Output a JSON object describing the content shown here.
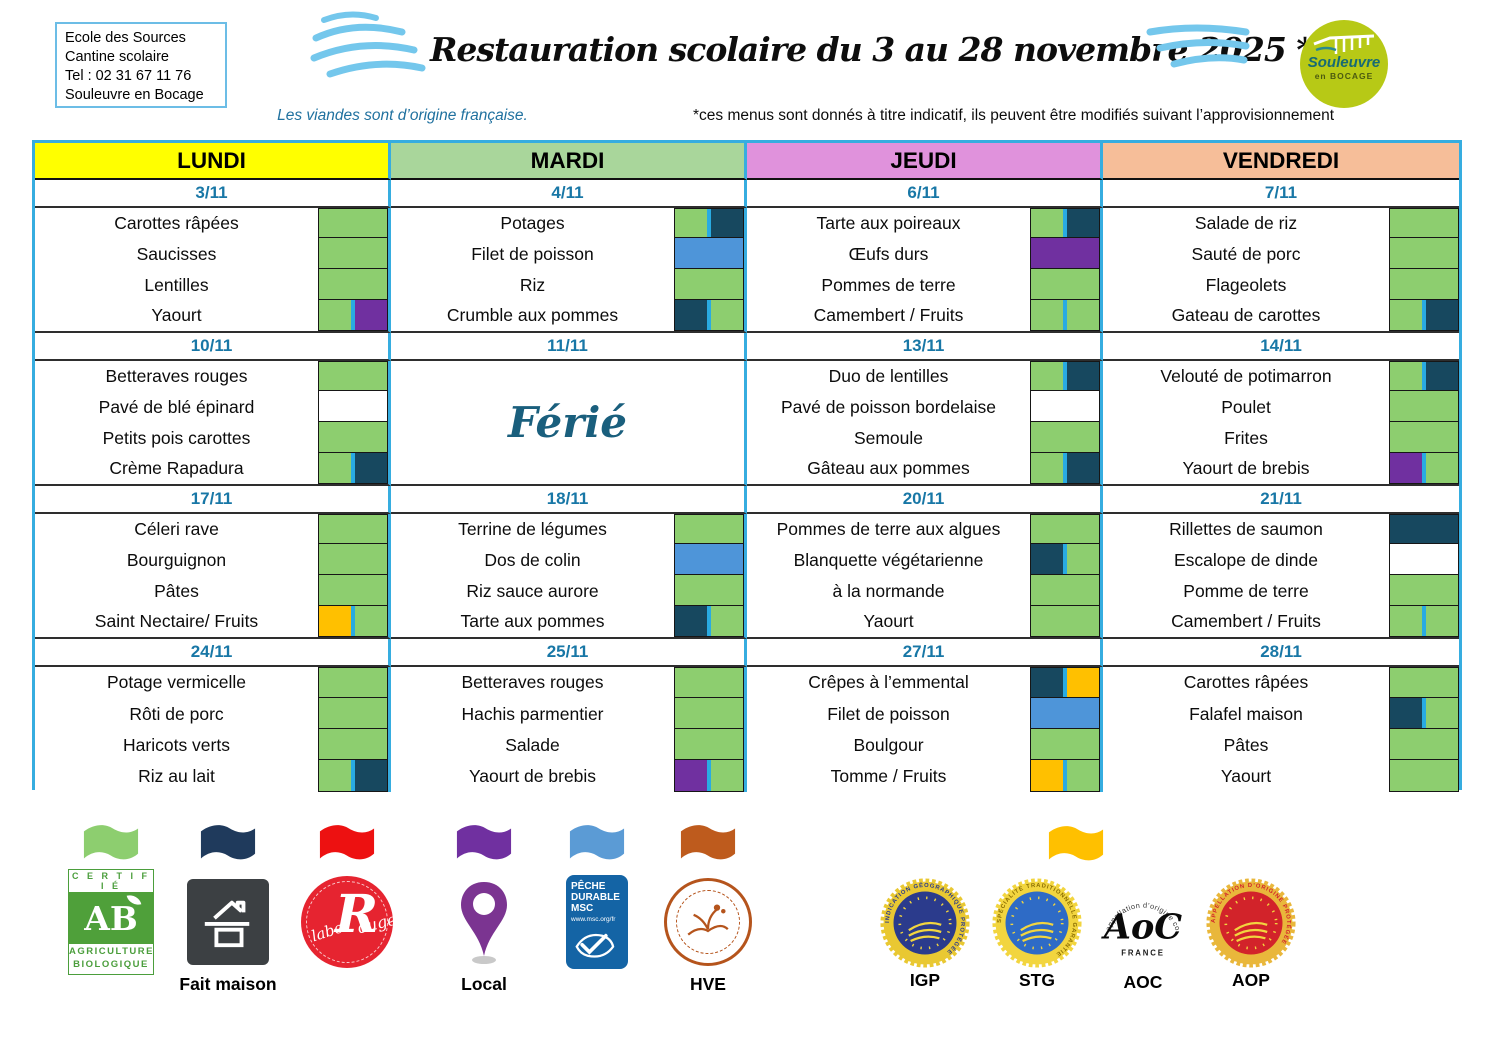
{
  "header": {
    "info_box": {
      "lines": [
        "Ecole des Sources",
        "Cantine scolaire",
        "Tel : 02 31 67 11 76",
        "Souleuvre en Bocage"
      ]
    },
    "title": "Restauration scolaire du 3 au 28 novembre 2025 *",
    "logo": {
      "line1": "Souleuvre",
      "line2": "en BOCAGE"
    }
  },
  "notes": {
    "left": "Les viandes sont d’origine française.",
    "right": "*ces menus sont donnés à titre indicatif, ils peuvent être modifiés suivant l’approvisionnement"
  },
  "days": [
    {
      "label": "LUNDI",
      "color": "#FFFF00"
    },
    {
      "label": "MARDI",
      "color": "#A9D69B"
    },
    {
      "label": "JEUDI",
      "color": "#E092DC"
    },
    {
      "label": "VENDREDI",
      "color": "#F6BE99"
    }
  ],
  "marker_colors": {
    "green": "#8DCE6F",
    "navy": "#17485F",
    "blue": "#4E95D9",
    "purple": "#7030A0",
    "orange": "#FFC000",
    "white": "#FFFFFF"
  },
  "weeks": [
    {
      "cells": [
        {
          "date": "3/11",
          "items": [
            {
              "text": "Carottes râpées",
              "marks": [
                "green"
              ]
            },
            {
              "text": "Saucisses",
              "marks": [
                "green"
              ]
            },
            {
              "text": "Lentilles",
              "marks": [
                "green"
              ]
            },
            {
              "text": "Yaourt",
              "marks": [
                "green",
                "purple"
              ]
            }
          ]
        },
        {
          "date": "4/11",
          "items": [
            {
              "text": "Potages",
              "marks": [
                "green",
                "navy"
              ]
            },
            {
              "text": "Filet de poisson",
              "marks": [
                "blue"
              ]
            },
            {
              "text": "Riz",
              "marks": [
                "green"
              ]
            },
            {
              "text": "Crumble aux  pommes",
              "marks": [
                "navy",
                "green"
              ]
            }
          ]
        },
        {
          "date": "6/11",
          "items": [
            {
              "text": "Tarte aux poireaux",
              "marks": [
                "green",
                "navy"
              ]
            },
            {
              "text": "Œufs durs",
              "marks": [
                "purple"
              ]
            },
            {
              "text": "Pommes de terre",
              "marks": [
                "green"
              ]
            },
            {
              "text": "Camembert  / Fruits",
              "marks": [
                "green",
                "green"
              ]
            }
          ]
        },
        {
          "date": "7/11",
          "items": [
            {
              "text": "Salade de riz",
              "marks": [
                "green"
              ]
            },
            {
              "text": "Sauté de porc",
              "marks": [
                "green"
              ]
            },
            {
              "text": "Flageolets",
              "marks": [
                "green"
              ]
            },
            {
              "text": "Gateau de carottes",
              "marks": [
                "green",
                "navy"
              ]
            }
          ]
        }
      ]
    },
    {
      "cells": [
        {
          "date": "10/11",
          "items": [
            {
              "text": "Betteraves rouges",
              "marks": [
                "green"
              ]
            },
            {
              "text": "Pavé de blé épinard",
              "marks": [
                "white"
              ]
            },
            {
              "text": "Petits pois carottes",
              "marks": [
                "green"
              ]
            },
            {
              "text": "Crème Rapadura",
              "marks": [
                "green",
                "navy"
              ]
            }
          ]
        },
        {
          "date": "11/11",
          "ferie": "Férié"
        },
        {
          "date": "13/11",
          "items": [
            {
              "text": "Duo de lentilles",
              "marks": [
                "green",
                "navy"
              ]
            },
            {
              "text": "Pavé de poisson bordelaise",
              "marks": [
                "white"
              ]
            },
            {
              "text": "Semoule",
              "marks": [
                "green"
              ]
            },
            {
              "text": "Gâteau  aux pommes",
              "marks": [
                "green",
                "navy"
              ]
            }
          ]
        },
        {
          "date": "14/11",
          "items": [
            {
              "text": "Velouté de potimarron",
              "marks": [
                "green",
                "navy"
              ]
            },
            {
              "text": "Poulet",
              "marks": [
                "green"
              ]
            },
            {
              "text": "Frites",
              "marks": [
                "green"
              ]
            },
            {
              "text": "Yaourt de brebis",
              "marks": [
                "purple",
                "green"
              ]
            }
          ]
        }
      ]
    },
    {
      "cells": [
        {
          "date": "17/11",
          "items": [
            {
              "text": "Céleri rave",
              "marks": [
                "green"
              ]
            },
            {
              "text": "Bourguignon",
              "marks": [
                "green"
              ]
            },
            {
              "text": "Pâtes",
              "marks": [
                "green"
              ]
            },
            {
              "text": "Saint Nectaire/ Fruits",
              "marks": [
                "orange",
                "green"
              ]
            }
          ]
        },
        {
          "date": "18/11",
          "items": [
            {
              "text": "Terrine de légumes",
              "marks": [
                "green"
              ]
            },
            {
              "text": "Dos de colin",
              "marks": [
                "blue"
              ]
            },
            {
              "text": "Riz sauce aurore",
              "marks": [
                "green"
              ]
            },
            {
              "text": "Tarte aux pommes",
              "marks": [
                "navy",
                "green"
              ]
            }
          ]
        },
        {
          "date": "20/11",
          "items": [
            {
              "text": "Pommes de terre aux algues",
              "marks": [
                "green"
              ]
            },
            {
              "text": "Blanquette végétarienne",
              "marks": [
                "navy",
                "green"
              ]
            },
            {
              "text": "à la normande",
              "marks": [
                "green"
              ]
            },
            {
              "text": "Yaourt",
              "marks": [
                "green"
              ]
            }
          ]
        },
        {
          "date": "21/11",
          "items": [
            {
              "text": "Rillettes de saumon",
              "marks": [
                "navy"
              ]
            },
            {
              "text": "Escalope de dinde",
              "marks": [
                "white"
              ]
            },
            {
              "text": "Pomme de terre",
              "marks": [
                "green"
              ]
            },
            {
              "text": "Camembert / Fruits",
              "marks": [
                "green",
                "green"
              ]
            }
          ]
        }
      ]
    },
    {
      "cells": [
        {
          "date": "24/11",
          "items": [
            {
              "text": "Potage vermicelle",
              "marks": [
                "green"
              ]
            },
            {
              "text": "Rôti de porc",
              "marks": [
                "green"
              ]
            },
            {
              "text": "Haricots verts",
              "marks": [
                "green"
              ]
            },
            {
              "text": "Riz au lait",
              "marks": [
                "green",
                "navy"
              ]
            }
          ]
        },
        {
          "date": "25/11",
          "items": [
            {
              "text": "Betteraves rouges",
              "marks": [
                "green"
              ]
            },
            {
              "text": "Hachis parmentier",
              "marks": [
                "green"
              ]
            },
            {
              "text": "Salade",
              "marks": [
                "green"
              ]
            },
            {
              "text": "Yaourt de brebis",
              "marks": [
                "purple",
                "green"
              ]
            }
          ]
        },
        {
          "date": "27/11",
          "items": [
            {
              "text": "Crêpes à l’emmental",
              "marks": [
                "navy",
                "orange"
              ]
            },
            {
              "text": "Filet de poisson",
              "marks": [
                "blue"
              ]
            },
            {
              "text": "Boulgour",
              "marks": [
                "green"
              ]
            },
            {
              "text": "Tomme / Fruits",
              "marks": [
                "orange",
                "green"
              ]
            }
          ]
        },
        {
          "date": "28/11",
          "items": [
            {
              "text": "Carottes râpées",
              "marks": [
                "green"
              ]
            },
            {
              "text": "Falafel maison",
              "marks": [
                "navy",
                "green"
              ]
            },
            {
              "text": "Pâtes",
              "marks": [
                "green"
              ]
            },
            {
              "text": "Yaourt",
              "marks": [
                "green"
              ]
            }
          ]
        }
      ]
    }
  ],
  "legend": {
    "items": [
      {
        "name": "bio",
        "flag_color": "#8DCE6F",
        "label": "",
        "logo": "ab",
        "logo_text": {
          "top": "C E R T I F I É",
          "letters": "AB",
          "line1": "AGRICULTURE",
          "line2": "BIOLOGIQUE"
        }
      },
      {
        "name": "fait-maison",
        "flag_color": "#1F3A5C",
        "label": "Fait maison",
        "logo": "fait-maison"
      },
      {
        "name": "label-rouge",
        "flag_color": "#ED1111",
        "label": "",
        "logo": "label-rouge",
        "logo_text": {
          "script": "label",
          "big": "R",
          "rest": "ouge"
        }
      },
      {
        "name": "local",
        "flag_color": "#7030A0",
        "label": "Local",
        "logo": "pin"
      },
      {
        "name": "msc",
        "flag_color": "#5B9BD5",
        "label": "",
        "logo": "msc",
        "logo_text": {
          "l1": "PÊCHE",
          "l2": "DURABLE",
          "l3": "MSC",
          "l4": "www.msc.org/fr"
        }
      },
      {
        "name": "hve",
        "flag_color": "#BE5B1D",
        "label": "HVE",
        "logo": "hve"
      }
    ],
    "group_flag_color": "#FFC000",
    "seals": [
      {
        "label": "IGP",
        "ring_text": "INDICATION GÉOGRAPHIQUE PROTÉGÉE",
        "outer": "#E9C832",
        "inner": "#2B3B8C",
        "accent": "#F2D53F",
        "ring_fill": "#2B3B8C"
      },
      {
        "label": "STG",
        "ring_text": "SPÉCIALITÉ TRADITIONNELLE GARANTIE",
        "outer": "#F2D53F",
        "inner": "#2E6BC6",
        "accent": "#F2D53F",
        "ring_fill": "#8a6d00"
      },
      {
        "label": "AOC",
        "arc_text": "appellation d’origine contrôlée",
        "big": "AoC",
        "sub": "FRANCE"
      },
      {
        "label": "AOP",
        "ring_text": "APPELLATION D’ORIGINE PROTÉGÉE",
        "outer": "#E9B73B",
        "inner": "#D2232A",
        "accent": "#F2D53F",
        "ring_fill": "#D2232A"
      }
    ]
  }
}
